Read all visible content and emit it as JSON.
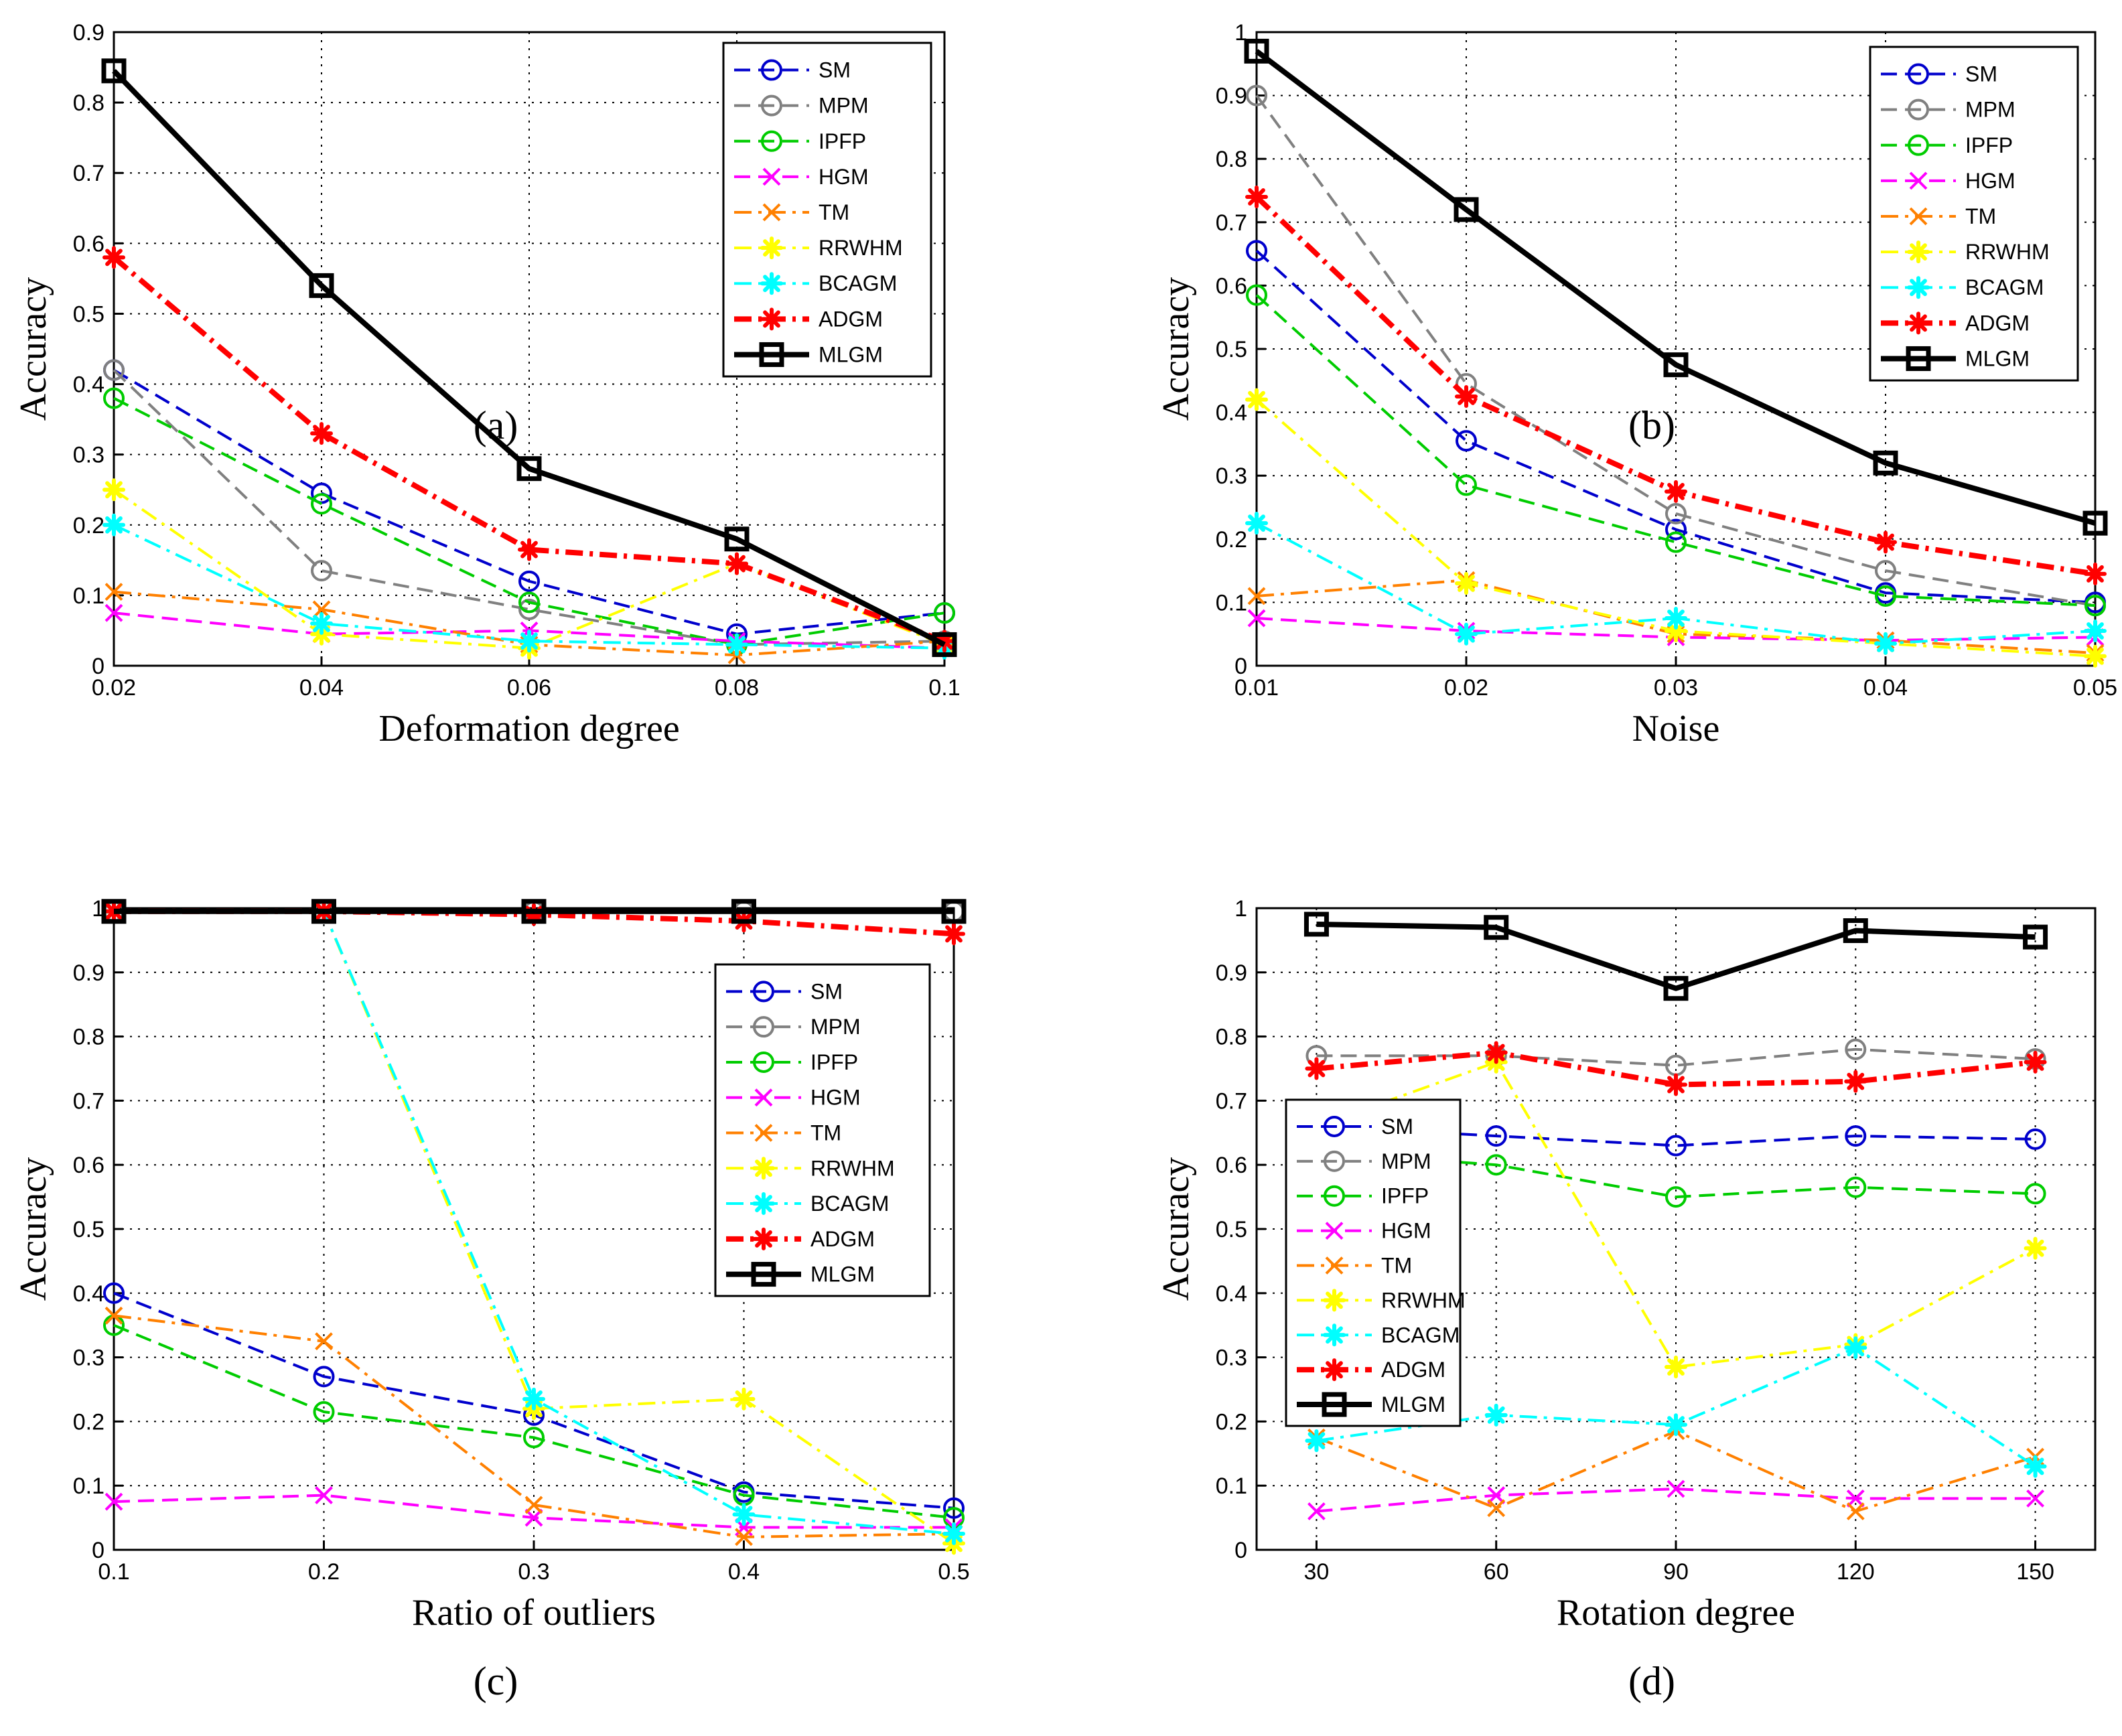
{
  "chart_data": [
    {
      "type": "line",
      "panel_label": "(a)",
      "xlabel": "Deformation degree",
      "ylabel": "Accuracy",
      "x": [
        0.02,
        0.04,
        0.06,
        0.08,
        0.1
      ],
      "xticks": [
        "0.02",
        "0.04",
        "0.06",
        "0.08",
        "0.1"
      ],
      "xlim": [
        0.02,
        0.1
      ],
      "ylim": [
        0,
        0.9
      ],
      "yticks": [
        "0",
        "0.1",
        "0.2",
        "0.3",
        "0.4",
        "0.5",
        "0.6",
        "0.7",
        "0.8",
        "0.9"
      ],
      "grid": true,
      "legend_position": "top-right",
      "series": [
        {
          "name": "SM",
          "values": [
            0.42,
            0.245,
            0.12,
            0.045,
            0.075
          ]
        },
        {
          "name": "MPM",
          "values": [
            0.42,
            0.135,
            0.08,
            0.03,
            0.035
          ]
        },
        {
          "name": "IPFP",
          "values": [
            0.38,
            0.23,
            0.09,
            0.03,
            0.075
          ]
        },
        {
          "name": "HGM",
          "values": [
            0.075,
            0.045,
            0.05,
            0.035,
            0.025
          ]
        },
        {
          "name": "TM",
          "values": [
            0.105,
            0.08,
            0.03,
            0.015,
            0.035
          ]
        },
        {
          "name": "RRWHM",
          "values": [
            0.25,
            0.045,
            0.025,
            0.145,
            0.03
          ]
        },
        {
          "name": "BCAGM",
          "values": [
            0.2,
            0.06,
            0.035,
            0.03,
            0.025
          ]
        },
        {
          "name": "ADGM",
          "values": [
            0.58,
            0.33,
            0.165,
            0.145,
            0.035
          ]
        },
        {
          "name": "MLGM",
          "values": [
            0.845,
            0.54,
            0.28,
            0.18,
            0.03
          ]
        }
      ]
    },
    {
      "type": "line",
      "panel_label": "(b)",
      "xlabel": "Noise",
      "ylabel": "Accuracy",
      "x": [
        0.01,
        0.02,
        0.03,
        0.04,
        0.05
      ],
      "xticks": [
        "0.01",
        "0.02",
        "0.03",
        "0.04",
        "0.05"
      ],
      "xlim": [
        0.01,
        0.05
      ],
      "ylim": [
        0,
        1
      ],
      "yticks": [
        "0",
        "0.1",
        "0.2",
        "0.3",
        "0.4",
        "0.5",
        "0.6",
        "0.7",
        "0.8",
        "0.9",
        "1"
      ],
      "grid": true,
      "legend_position": "top-right",
      "series": [
        {
          "name": "SM",
          "values": [
            0.655,
            0.355,
            0.215,
            0.115,
            0.1
          ]
        },
        {
          "name": "MPM",
          "values": [
            0.9,
            0.445,
            0.24,
            0.15,
            0.095
          ]
        },
        {
          "name": "IPFP",
          "values": [
            0.585,
            0.285,
            0.195,
            0.11,
            0.095
          ]
        },
        {
          "name": "HGM",
          "values": [
            0.075,
            0.055,
            0.045,
            0.04,
            0.045
          ]
        },
        {
          "name": "TM",
          "values": [
            0.11,
            0.135,
            0.05,
            0.04,
            0.02
          ]
        },
        {
          "name": "RRWHM",
          "values": [
            0.42,
            0.13,
            0.055,
            0.035,
            0.015
          ]
        },
        {
          "name": "BCAGM",
          "values": [
            0.225,
            0.05,
            0.075,
            0.035,
            0.055
          ]
        },
        {
          "name": "ADGM",
          "values": [
            0.74,
            0.425,
            0.275,
            0.195,
            0.145
          ]
        },
        {
          "name": "MLGM",
          "values": [
            0.97,
            0.72,
            0.475,
            0.32,
            0.225
          ]
        }
      ]
    },
    {
      "type": "line",
      "panel_label": "(c)",
      "xlabel": "Ratio of outliers",
      "ylabel": "Accuracy",
      "x": [
        0.1,
        0.2,
        0.3,
        0.4,
        0.5
      ],
      "xticks": [
        "0.1",
        "0.2",
        "0.3",
        "0.4",
        "0.5"
      ],
      "xlim": [
        0.1,
        0.5
      ],
      "ylim": [
        0,
        1
      ],
      "yticks": [
        "0",
        "0.1",
        "0.2",
        "0.3",
        "0.4",
        "0.5",
        "0.6",
        "0.7",
        "0.8",
        "0.9",
        "1"
      ],
      "grid": true,
      "legend_position": "middle-right",
      "series": [
        {
          "name": "SM",
          "values": [
            0.4,
            0.27,
            0.21,
            0.09,
            0.065
          ]
        },
        {
          "name": "MPM",
          "values": [
            0.995,
            0.995,
            0.995,
            0.995,
            0.995
          ]
        },
        {
          "name": "IPFP",
          "values": [
            0.35,
            0.215,
            0.175,
            0.085,
            0.05
          ]
        },
        {
          "name": "HGM",
          "values": [
            0.075,
            0.085,
            0.05,
            0.035,
            0.035
          ]
        },
        {
          "name": "TM",
          "values": [
            0.365,
            0.325,
            0.07,
            0.02,
            0.025
          ]
        },
        {
          "name": "RRWHM",
          "values": [
            0.995,
            0.995,
            0.22,
            0.235,
            0.01
          ]
        },
        {
          "name": "BCAGM",
          "values": [
            0.995,
            0.995,
            0.235,
            0.055,
            0.025
          ]
        },
        {
          "name": "ADGM",
          "values": [
            0.995,
            0.995,
            0.99,
            0.98,
            0.96
          ]
        },
        {
          "name": "MLGM",
          "values": [
            0.995,
            0.995,
            0.995,
            0.995,
            0.995
          ]
        }
      ]
    },
    {
      "type": "line",
      "panel_label": "(d)",
      "xlabel": "Rotation degree",
      "ylabel": "Accuracy",
      "x": [
        30,
        60,
        90,
        120,
        150
      ],
      "xticks": [
        "30",
        "60",
        "90",
        "120",
        "150"
      ],
      "xlim": [
        20,
        160
      ],
      "ylim": [
        0,
        1
      ],
      "yticks": [
        "0",
        "0.1",
        "0.2",
        "0.3",
        "0.4",
        "0.5",
        "0.6",
        "0.7",
        "0.8",
        "0.9",
        "1"
      ],
      "grid": true,
      "legend_position": "middle-left",
      "series": [
        {
          "name": "SM",
          "values": [
            0.66,
            0.645,
            0.63,
            0.645,
            0.64
          ]
        },
        {
          "name": "MPM",
          "values": [
            0.77,
            0.77,
            0.755,
            0.78,
            0.765
          ]
        },
        {
          "name": "IPFP",
          "values": [
            0.62,
            0.6,
            0.55,
            0.565,
            0.555
          ]
        },
        {
          "name": "HGM",
          "values": [
            0.06,
            0.085,
            0.095,
            0.08,
            0.08
          ]
        },
        {
          "name": "TM",
          "values": [
            0.175,
            0.065,
            0.185,
            0.06,
            0.145
          ]
        },
        {
          "name": "RRWHM",
          "values": [
            0.66,
            0.76,
            0.285,
            0.32,
            0.47
          ]
        },
        {
          "name": "BCAGM",
          "values": [
            0.17,
            0.21,
            0.195,
            0.315,
            0.13
          ]
        },
        {
          "name": "ADGM",
          "values": [
            0.75,
            0.775,
            0.725,
            0.73,
            0.76
          ]
        },
        {
          "name": "MLGM",
          "values": [
            0.975,
            0.97,
            0.875,
            0.965,
            0.955
          ]
        }
      ]
    }
  ],
  "series_styles": {
    "SM": {
      "color": "#0000CC",
      "dash": "dashed",
      "marker": "circle"
    },
    "MPM": {
      "color": "#808080",
      "dash": "dashed",
      "marker": "circle"
    },
    "IPFP": {
      "color": "#00CC00",
      "dash": "dashed",
      "marker": "circle"
    },
    "HGM": {
      "color": "#FF00FF",
      "dash": "dashed",
      "marker": "x"
    },
    "TM": {
      "color": "#FF8000",
      "dash": "dashdot",
      "marker": "x"
    },
    "RRWHM": {
      "color": "#FFFF00",
      "dash": "dashdot",
      "marker": "star"
    },
    "BCAGM": {
      "color": "#00FFFF",
      "dash": "dashdot",
      "marker": "star"
    },
    "ADGM": {
      "color": "#FF0000",
      "dash": "dashdot",
      "marker": "star"
    },
    "MLGM": {
      "color": "#000000",
      "dash": "solid",
      "marker": "square"
    }
  }
}
